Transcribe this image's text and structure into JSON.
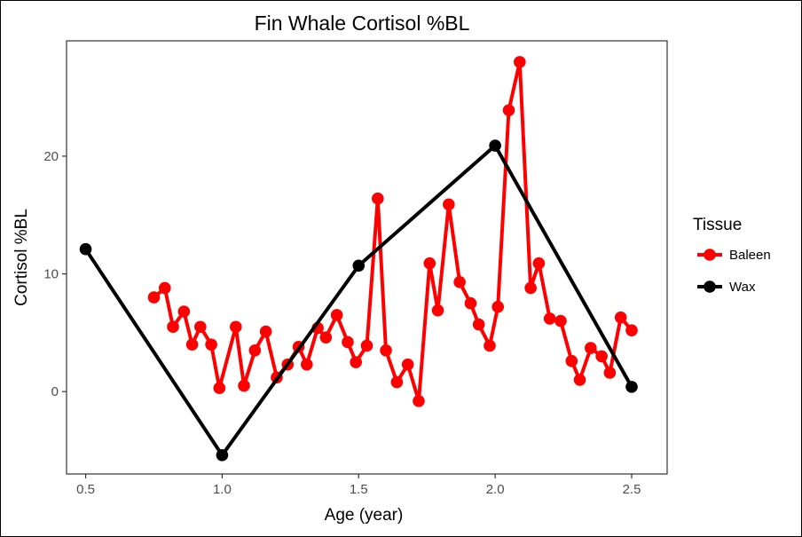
{
  "chart_data": {
    "type": "line",
    "title": "Fin Whale Cortisol %BL",
    "xlabel": "Age (year)",
    "ylabel": "Cortisol %BL",
    "xlim": [
      0.43,
      2.63
    ],
    "ylim": [
      -7.0,
      29.8
    ],
    "x_ticks": [
      0.5,
      1.0,
      1.5,
      2.0,
      2.5
    ],
    "x_tick_labels": [
      "0.5",
      "1.0",
      "1.5",
      "2.0",
      "2.5"
    ],
    "y_ticks": [
      0,
      10,
      20
    ],
    "y_tick_labels": [
      "0",
      "10",
      "20"
    ],
    "grid": false,
    "legend_title": "Tissue",
    "legend_position": "right",
    "series": [
      {
        "name": "Baleen",
        "color": "#ff0000",
        "x": [
          0.75,
          0.79,
          0.82,
          0.86,
          0.89,
          0.92,
          0.96,
          0.99,
          1.05,
          1.08,
          1.12,
          1.16,
          1.2,
          1.24,
          1.28,
          1.31,
          1.35,
          1.38,
          1.42,
          1.46,
          1.49,
          1.53,
          1.57,
          1.6,
          1.64,
          1.68,
          1.72,
          1.76,
          1.79,
          1.83,
          1.87,
          1.91,
          1.94,
          1.98,
          2.01,
          2.05,
          2.09,
          2.13,
          2.16,
          2.2,
          2.24,
          2.28,
          2.31,
          2.35,
          2.39,
          2.42,
          2.46,
          2.5
        ],
        "y": [
          8.0,
          8.8,
          5.5,
          6.8,
          4.0,
          5.5,
          4.0,
          0.3,
          5.5,
          0.5,
          3.5,
          5.1,
          1.2,
          2.3,
          3.8,
          2.3,
          5.4,
          4.6,
          6.5,
          4.2,
          2.5,
          3.9,
          16.4,
          3.5,
          0.8,
          2.3,
          -0.8,
          10.9,
          6.9,
          15.9,
          9.3,
          7.5,
          5.7,
          3.9,
          7.2,
          23.9,
          28.0,
          8.8,
          10.9,
          6.2,
          6.0,
          2.6,
          1.0,
          3.7,
          3.0,
          1.6,
          6.3,
          5.2
        ]
      },
      {
        "name": "Wax",
        "color": "#000000",
        "x": [
          0.5,
          1.0,
          1.5,
          2.0,
          2.5
        ],
        "y": [
          12.1,
          -5.4,
          10.7,
          20.9,
          0.4
        ]
      }
    ]
  }
}
